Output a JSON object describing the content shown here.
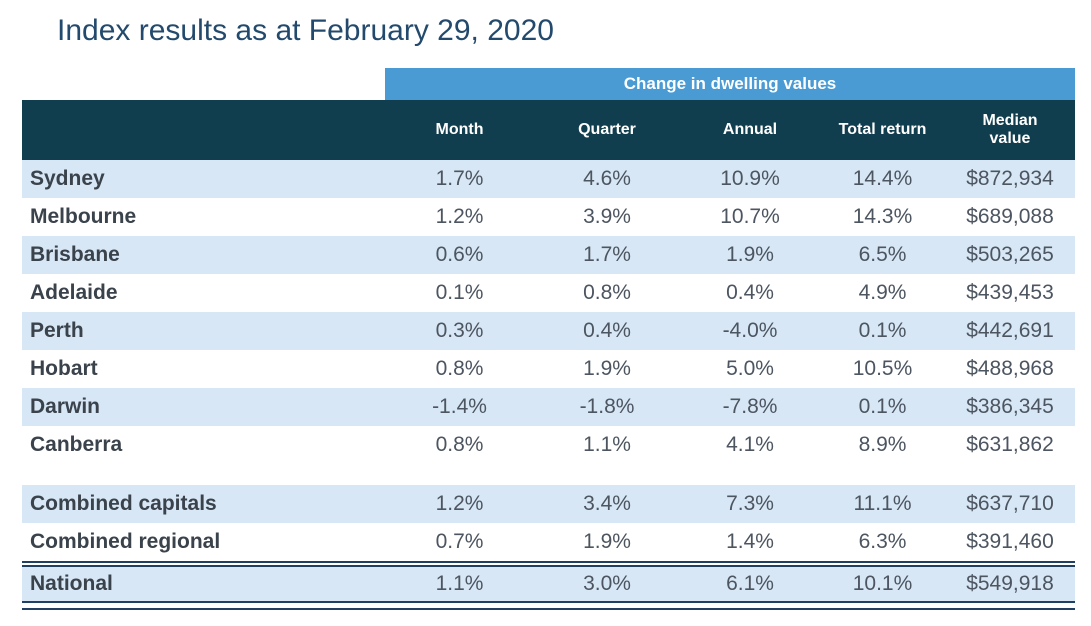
{
  "page": {
    "title": "Index results as at February 29, 2020"
  },
  "table": {
    "group_header": "Change in dwelling values"
  },
  "colors": {
    "title_text": "#234A6D",
    "band_blue": "#4A9BD4",
    "header_teal": "#113E4E",
    "row_alt_blue": "#D7E7F5",
    "label_text": "#3A424B",
    "value_text": "#4C5560",
    "rule_navy": "#1F4063"
  },
  "chart_data": {
    "type": "table",
    "title": "Index results as at February 29, 2020",
    "group_header": "Change in dwelling values",
    "columns": [
      "Month",
      "Quarter",
      "Annual",
      "Total return",
      "Median value"
    ],
    "rows": [
      {
        "label": "Sydney",
        "values": [
          "1.7%",
          "4.6%",
          "10.9%",
          "14.4%",
          "$872,934"
        ]
      },
      {
        "label": "Melbourne",
        "values": [
          "1.2%",
          "3.9%",
          "10.7%",
          "14.3%",
          "$689,088"
        ]
      },
      {
        "label": "Brisbane",
        "values": [
          "0.6%",
          "1.7%",
          "1.9%",
          "6.5%",
          "$503,265"
        ]
      },
      {
        "label": "Adelaide",
        "values": [
          "0.1%",
          "0.8%",
          "0.4%",
          "4.9%",
          "$439,453"
        ]
      },
      {
        "label": "Perth",
        "values": [
          "0.3%",
          "0.4%",
          "-4.0%",
          "0.1%",
          "$442,691"
        ]
      },
      {
        "label": "Hobart",
        "values": [
          "0.8%",
          "1.9%",
          "5.0%",
          "10.5%",
          "$488,968"
        ]
      },
      {
        "label": "Darwin",
        "values": [
          "-1.4%",
          "-1.8%",
          "-7.8%",
          "0.1%",
          "$386,345"
        ]
      },
      {
        "label": "Canberra",
        "values": [
          "0.8%",
          "1.1%",
          "4.1%",
          "8.9%",
          "$631,862"
        ]
      },
      {
        "label": "Combined capitals",
        "values": [
          "1.2%",
          "3.4%",
          "7.3%",
          "11.1%",
          "$637,710"
        ]
      },
      {
        "label": "Combined regional",
        "values": [
          "0.7%",
          "1.9%",
          "1.4%",
          "6.3%",
          "$391,460"
        ]
      },
      {
        "label": "National",
        "values": [
          "1.1%",
          "3.0%",
          "6.1%",
          "10.1%",
          "$549,918"
        ]
      }
    ]
  }
}
